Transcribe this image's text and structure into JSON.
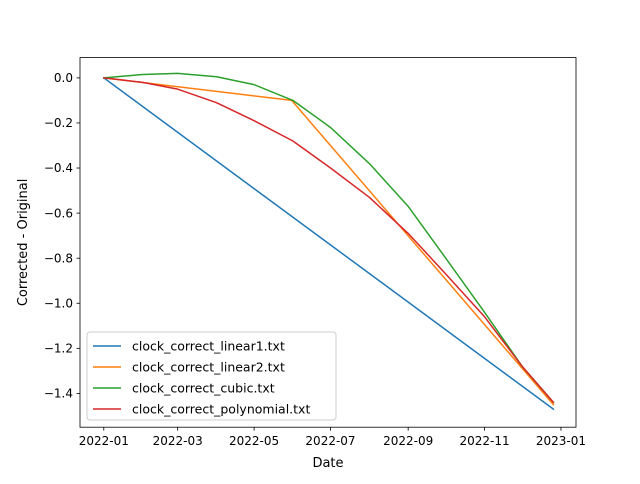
{
  "chart_data": {
    "type": "line",
    "title": "",
    "xlabel": "Date",
    "ylabel": "Corrected - Original",
    "xlim": [
      "2021-12-13",
      "2023-01-13"
    ],
    "ylim": [
      -1.55,
      0.09
    ],
    "grid": false,
    "legend_position": "lower-left",
    "x_ticks": [
      {
        "date": "2022-01-01",
        "label": "2022-01"
      },
      {
        "date": "2022-03-01",
        "label": "2022-03"
      },
      {
        "date": "2022-05-01",
        "label": "2022-05"
      },
      {
        "date": "2022-07-01",
        "label": "2022-07"
      },
      {
        "date": "2022-09-01",
        "label": "2022-09"
      },
      {
        "date": "2022-11-01",
        "label": "2022-11"
      },
      {
        "date": "2023-01-01",
        "label": "2023-01"
      }
    ],
    "y_ticks": [
      {
        "value": 0.0,
        "label": "0.0"
      },
      {
        "value": -0.2,
        "label": "−0.2"
      },
      {
        "value": -0.4,
        "label": "−0.4"
      },
      {
        "value": -0.6,
        "label": "−0.6"
      },
      {
        "value": -0.8,
        "label": "−0.8"
      },
      {
        "value": -1.0,
        "label": "−1.0"
      },
      {
        "value": -1.2,
        "label": "−1.2"
      },
      {
        "value": -1.4,
        "label": "−1.4"
      }
    ],
    "series": [
      {
        "name": "clock_correct_linear1.txt",
        "color": "#1f77b4",
        "x": [
          "2022-01-01",
          "2022-12-26"
        ],
        "y": [
          0.0,
          -1.47
        ]
      },
      {
        "name": "clock_correct_linear2.txt",
        "color": "#ff7f0e",
        "x": [
          "2022-01-01",
          "2022-05-31",
          "2022-12-26"
        ],
        "y": [
          0.0,
          -0.1,
          -1.45
        ]
      },
      {
        "name": "clock_correct_cubic.txt",
        "color": "#2ca02c",
        "x": [
          "2022-01-01",
          "2022-02-01",
          "2022-03-01",
          "2022-04-01",
          "2022-05-01",
          "2022-06-01",
          "2022-07-01",
          "2022-08-01",
          "2022-09-01",
          "2022-10-01",
          "2022-11-01",
          "2022-12-01",
          "2022-12-26"
        ],
        "y": [
          0.0,
          0.015,
          0.02,
          0.005,
          -0.03,
          -0.1,
          -0.22,
          -0.38,
          -0.57,
          -0.8,
          -1.04,
          -1.28,
          -1.44
        ]
      },
      {
        "name": "clock_correct_polynomial.txt",
        "color": "#d62728",
        "x": [
          "2022-01-01",
          "2022-02-01",
          "2022-03-01",
          "2022-04-01",
          "2022-05-01",
          "2022-06-01",
          "2022-07-01",
          "2022-08-01",
          "2022-09-01",
          "2022-10-01",
          "2022-11-01",
          "2022-12-01",
          "2022-12-26"
        ],
        "y": [
          0.0,
          -0.02,
          -0.05,
          -0.11,
          -0.19,
          -0.28,
          -0.4,
          -0.53,
          -0.69,
          -0.87,
          -1.06,
          -1.28,
          -1.44
        ]
      }
    ]
  }
}
